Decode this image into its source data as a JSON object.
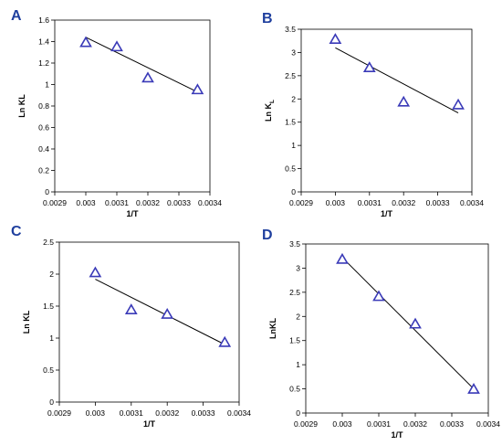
{
  "chart_data": [
    {
      "panel": "A",
      "type": "scatter",
      "title": "",
      "xlabel": "1/T",
      "ylabel": "Ln KL",
      "xlim": [
        0.0029,
        0.0034
      ],
      "ylim": [
        0,
        1.6
      ],
      "xticks": [
        0.0029,
        0.003,
        0.0031,
        0.0032,
        0.0033,
        0.0034
      ],
      "xtick_labels": [
        "0.0029",
        "0.003",
        "0.0031",
        "0.0032",
        "0.0033",
        "0.0034"
      ],
      "yticks": [
        0,
        0.2,
        0.4,
        0.6,
        0.8,
        1,
        1.2,
        1.4,
        1.6
      ],
      "ytick_labels": [
        "0",
        "0.2",
        "0.4",
        "0.6",
        "0.8",
        "1",
        "1.2",
        "1.4",
        "1.6"
      ],
      "series": [
        {
          "marker": "triangle",
          "color": "#3a3ab8",
          "x": [
            0.003,
            0.0031,
            0.0032,
            0.00336
          ],
          "y": [
            1.39,
            1.35,
            1.06,
            0.95
          ]
        }
      ],
      "trendline": {
        "x": [
          0.003,
          0.00336
        ],
        "y": [
          1.44,
          0.93
        ]
      },
      "grid": false,
      "legend": "none"
    },
    {
      "panel": "B",
      "type": "scatter",
      "title": "",
      "xlabel": "1/T",
      "ylabel_main": "Ln K",
      "ylabel_sub": "L",
      "xlim": [
        0.0029,
        0.0034
      ],
      "ylim": [
        0,
        3.5
      ],
      "xticks": [
        0.0029,
        0.003,
        0.0031,
        0.0032,
        0.0033,
        0.0034
      ],
      "xtick_labels": [
        "0.0029",
        "0.003",
        "0.0031",
        "0.0032",
        "0.0033",
        "0.0034"
      ],
      "yticks": [
        0,
        0.5,
        1,
        1.5,
        2,
        2.5,
        3,
        3.5
      ],
      "ytick_labels": [
        "0",
        "0.5",
        "1",
        "1.5",
        "2",
        "2.5",
        "3",
        "3.5"
      ],
      "series": [
        {
          "marker": "triangle",
          "color": "#3a3ab8",
          "x": [
            0.003,
            0.0031,
            0.0032,
            0.00336
          ],
          "y": [
            3.28,
            2.67,
            1.93,
            1.87
          ]
        }
      ],
      "trendline": {
        "x": [
          0.003,
          0.00336
        ],
        "y": [
          3.1,
          1.7
        ]
      },
      "grid": false,
      "legend": "none"
    },
    {
      "panel": "C",
      "type": "scatter",
      "title": "",
      "xlabel": "1/T",
      "ylabel": "Ln KL",
      "xlim": [
        0.0029,
        0.0034
      ],
      "ylim": [
        0,
        2.5
      ],
      "xticks": [
        0.0029,
        0.003,
        0.0031,
        0.0032,
        0.0033,
        0.0034
      ],
      "xtick_labels": [
        "0.0029",
        "0.003",
        "0.0031",
        "0.0032",
        "0.0033",
        "0.0034"
      ],
      "yticks": [
        0,
        0.5,
        1,
        1.5,
        2,
        2.5
      ],
      "ytick_labels": [
        "0",
        "0.5",
        "1",
        "1.5",
        "2",
        "2.5"
      ],
      "series": [
        {
          "marker": "triangle",
          "color": "#3a3ab8",
          "x": [
            0.003,
            0.0031,
            0.0032,
            0.00336
          ],
          "y": [
            2.02,
            1.44,
            1.37,
            0.93
          ]
        }
      ],
      "trendline": {
        "x": [
          0.003,
          0.00336
        ],
        "y": [
          1.92,
          0.9
        ]
      },
      "grid": false,
      "legend": "none"
    },
    {
      "panel": "D",
      "type": "scatter",
      "title": "",
      "xlabel": "1/T",
      "ylabel": "LnKL",
      "xlim": [
        0.0029,
        0.0034
      ],
      "ylim": [
        0,
        3.5
      ],
      "xticks": [
        0.0029,
        0.003,
        0.0031,
        0.0032,
        0.0033,
        0.0034
      ],
      "xtick_labels": [
        "0.0029",
        "0.003",
        "0.0031",
        "0.0032",
        "0.0033",
        "0.0034"
      ],
      "yticks": [
        0,
        0.5,
        1,
        1.5,
        2,
        2.5,
        3,
        3.5
      ],
      "ytick_labels": [
        "0",
        "0.5",
        "1",
        "1.5",
        "2",
        "2.5",
        "3",
        "3.5"
      ],
      "series": [
        {
          "marker": "triangle",
          "color": "#3a3ab8",
          "x": [
            0.003,
            0.0031,
            0.0032,
            0.00336
          ],
          "y": [
            3.18,
            2.41,
            1.84,
            0.49
          ]
        }
      ],
      "trendline": {
        "x": [
          0.003,
          0.00336
        ],
        "y": [
          3.22,
          0.5
        ]
      },
      "grid": false,
      "legend": "none"
    }
  ]
}
